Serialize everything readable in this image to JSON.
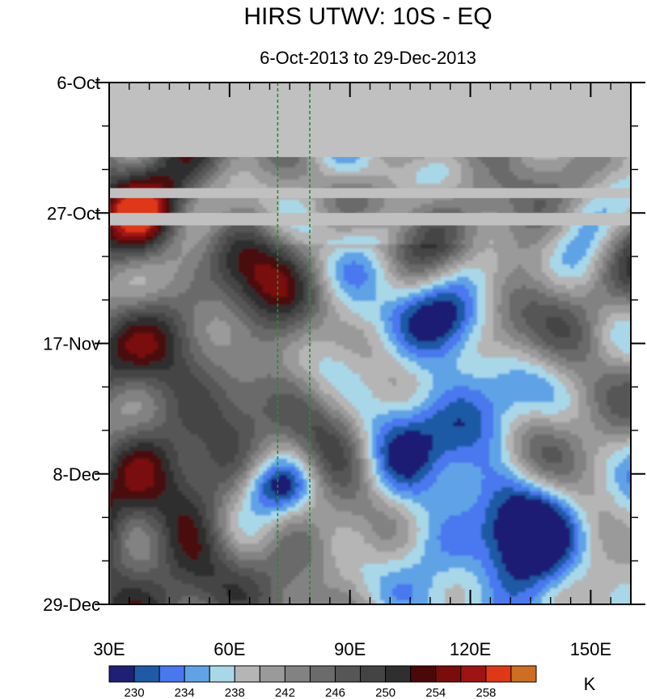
{
  "chart_data": {
    "type": "heatmap",
    "title": "HIRS UTWV: 10S - EQ",
    "subtitle": "6-Oct-2013 to 29-Dec-2013",
    "x_tick_labels": [
      "30E",
      "60E",
      "90E",
      "120E",
      "150E"
    ],
    "x_ticks_lon": [
      30,
      60,
      90,
      120,
      150
    ],
    "x_range_lon": [
      30,
      160
    ],
    "y_tick_labels": [
      "6-Oct",
      "27-Oct",
      "17-Nov",
      "8-Dec",
      "29-Dec"
    ],
    "y_ticks_day": [
      0,
      21,
      42,
      63,
      84
    ],
    "y_range_day": [
      0,
      84
    ],
    "y_minor_step_days": 7,
    "x_minor_step_lon": 5,
    "reference_lines_lon": [
      72,
      80
    ],
    "reference_line_color": "#2a8a2a",
    "missing_color": "#c0c0c0",
    "missing_periods": [
      {
        "from_day": 0,
        "to_day": 12
      },
      {
        "from_day": 17,
        "to_day": 18.6
      },
      {
        "from_day": 21,
        "to_day": 23
      }
    ],
    "unit": "K",
    "colorbar": {
      "levels": [
        230,
        232,
        234,
        236,
        238,
        240,
        242,
        244,
        246,
        248,
        250,
        252,
        254,
        256,
        258
      ],
      "labeled_levels": [
        230,
        234,
        238,
        242,
        246,
        250,
        254,
        258
      ],
      "colors": [
        "#1f1f75",
        "#1e5aa6",
        "#4878ef",
        "#5fa3e6",
        "#a8d8e8",
        "#b5b5b5",
        "#9a9a9a",
        "#828282",
        "#6b6b6b",
        "#565656",
        "#444444",
        "#2f2f2f",
        "#4a0808",
        "#7a0c0c",
        "#a01313",
        "#e03817",
        "#cf6d22"
      ]
    },
    "moist_band": {
      "description_none": "",
      "path": [
        [
          0,
          0
        ],
        [
          0,
          0
        ]
      ]
    }
  }
}
